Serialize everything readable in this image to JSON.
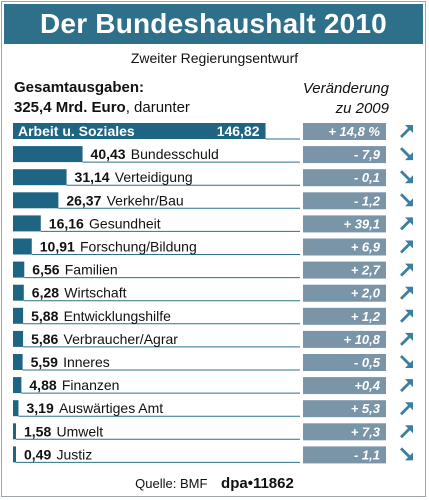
{
  "title": "Der Bundeshaushalt 2010",
  "subtitle": "Zweiter Regierungsentwurf",
  "total_label": "Gesamtausgaben:",
  "total_value": "325,4 Mrd. Euro",
  "total_suffix": ", darunter",
  "change_header_line1": "Veränderung",
  "change_header_line2": "zu 2009",
  "source_label": "Quelle: BMF",
  "credit": "dpa•11862",
  "colors": {
    "bar": "#1e6584",
    "title_bg": "#2e7089",
    "change_box": "#7a95a7",
    "arrow": "#3b80a0"
  },
  "chart_data": {
    "type": "bar",
    "orientation": "horizontal",
    "title": "Der Bundeshaushalt 2010",
    "subtitle": "Zweiter Regierungsentwurf",
    "unit": "Mrd. Euro",
    "categories": [
      "Arbeit u. Soziales",
      "Bundesschuld",
      "Verteidigung",
      "Verkehr/Bau",
      "Gesundheit",
      "Forschung/Bildung",
      "Familien",
      "Wirtschaft",
      "Entwicklungshilfe",
      "Verbraucher/Agrar",
      "Inneres",
      "Finanzen",
      "Auswärtiges Amt",
      "Umwelt",
      "Justiz"
    ],
    "value_labels": [
      "146,82",
      "40,43",
      "31,14",
      "26,37",
      "16,16",
      "10,91",
      "6,56",
      "6,28",
      "5,88",
      "5,86",
      "5,59",
      "4,88",
      "3,19",
      "1,58",
      "0,49"
    ],
    "values": [
      146.82,
      40.43,
      31.14,
      26.37,
      16.16,
      10.91,
      6.56,
      6.28,
      5.88,
      5.86,
      5.59,
      4.88,
      3.19,
      1.58,
      0.49
    ],
    "change_labels": [
      "+ 14,8 %",
      "- 7,9",
      "- 0,1",
      "- 1,2",
      "+ 39,1",
      "+ 6,9",
      "+ 2,7",
      "+ 2,0",
      "+ 1,2",
      "+ 10,8",
      "- 0,5",
      "+0,4",
      "+ 5,3",
      "+ 7,3",
      "- 1,1"
    ],
    "changes": [
      14.8,
      -7.9,
      -0.1,
      -1.2,
      39.1,
      6.9,
      2.7,
      2.0,
      1.2,
      10.8,
      -0.5,
      0.4,
      5.3,
      7.3,
      -1.1
    ],
    "change_direction": [
      "up",
      "down",
      "down",
      "down",
      "up",
      "up",
      "up",
      "up",
      "up",
      "up",
      "down",
      "up",
      "up",
      "up",
      "down"
    ]
  }
}
